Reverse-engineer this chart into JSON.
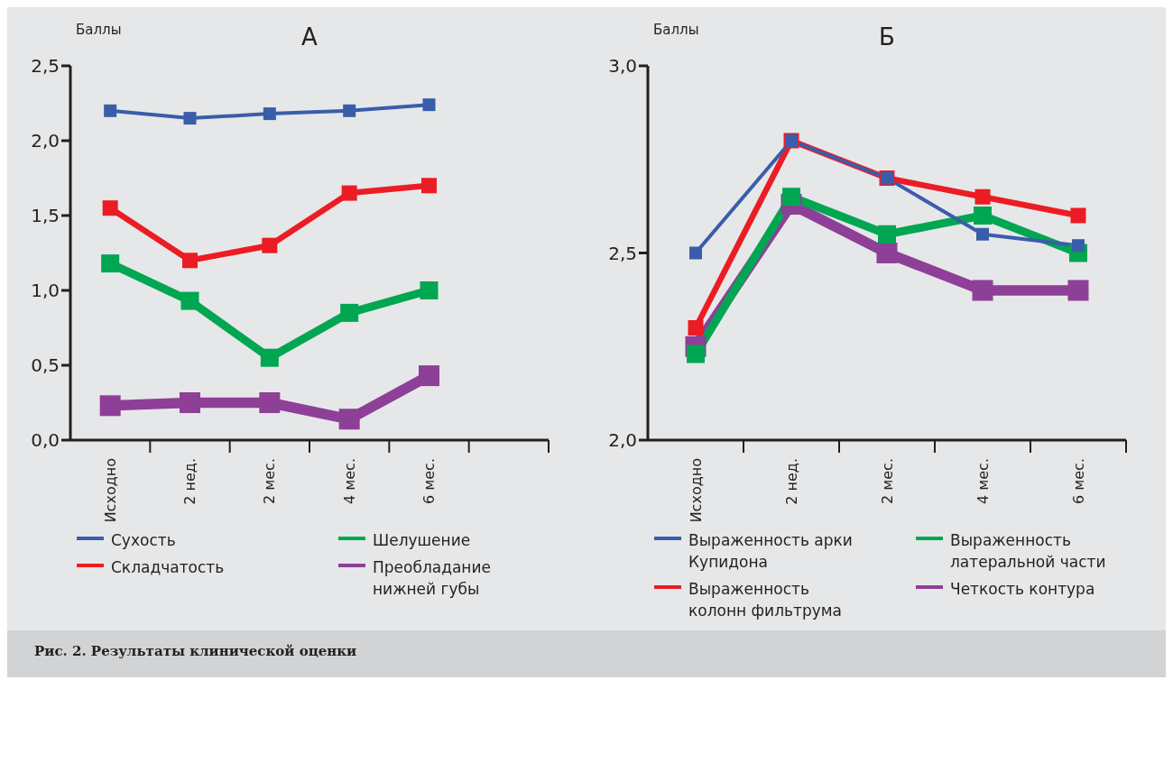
{
  "chart_data": [
    {
      "type": "line",
      "title": "А",
      "ylabel": "Баллы",
      "categories": [
        "Исходно",
        "2 нед.",
        "2 мес.",
        "4 мес.",
        "6 мес.",
        null
      ],
      "ylim": [
        0,
        2.5
      ],
      "yticks": [
        {
          "value": 0,
          "label": "0,0"
        },
        {
          "value": 0.5,
          "label": "0,5"
        },
        {
          "value": 1,
          "label": "1,0"
        },
        {
          "value": 1.5,
          "label": "1,5"
        },
        {
          "value": 2,
          "label": "2,0"
        },
        {
          "value": 2.5,
          "label": "2,5"
        }
      ],
      "grid": false,
      "legend": "bottom",
      "marker": "square",
      "line_style": "solid",
      "series": [
        {
          "name": "Сухость",
          "color": "#3a5daa",
          "values": [
            2.2,
            2.15,
            2.18,
            2.2,
            2.24,
            null
          ]
        },
        {
          "name": "Складчатость",
          "color": "#ec1c24",
          "values": [
            1.55,
            1.2,
            1.3,
            1.65,
            1.7,
            null
          ]
        },
        {
          "name": "Шелушение",
          "color": "#00a651",
          "values": [
            1.18,
            0.93,
            0.55,
            0.85,
            1.0,
            null
          ]
        },
        {
          "name": "Преобладание нижней губы",
          "color": "#8e3f98",
          "values": [
            0.23,
            0.25,
            0.25,
            0.14,
            0.43,
            null
          ]
        }
      ]
    },
    {
      "type": "line",
      "title": "Б",
      "ylabel": "Баллы",
      "categories": [
        "Исходно",
        "2 нед.",
        "2 мес.",
        "4 мес.",
        "6 мес."
      ],
      "ylim": [
        2,
        3
      ],
      "yticks": [
        {
          "value": 2,
          "label": "2,0"
        },
        {
          "value": 2.5,
          "label": "2,5"
        },
        {
          "value": 3,
          "label": "3,0"
        }
      ],
      "grid": false,
      "legend": "bottom",
      "marker": "square",
      "line_style": "solid",
      "annotations": [
        "Рис. 2. Результаты клинической оценки"
      ],
      "series": [
        {
          "name": "Выраженность арки Купидона",
          "color": "#3a5daa",
          "values": [
            2.5,
            2.8,
            2.7,
            2.55,
            2.52
          ]
        },
        {
          "name": "Выраженность колонн фильтрума",
          "color": "#ec1c24",
          "values": [
            2.3,
            2.8,
            2.7,
            2.65,
            2.6
          ]
        },
        {
          "name": "Выраженность латеральной части",
          "color": "#00a651",
          "values": [
            2.23,
            2.65,
            2.55,
            2.6,
            2.5
          ]
        },
        {
          "name": "Четкость контура",
          "color": "#8e3f98",
          "values": [
            2.25,
            2.63,
            2.5,
            2.4,
            2.4
          ]
        }
      ]
    }
  ]
}
